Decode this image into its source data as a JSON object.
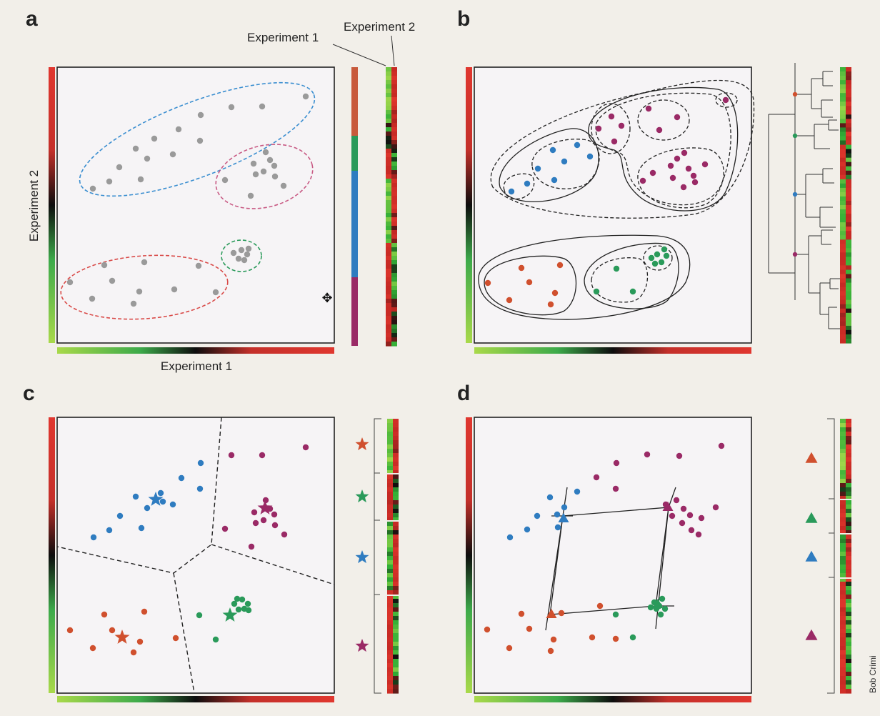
{
  "figure": {
    "panels": [
      "a",
      "b",
      "c",
      "d"
    ],
    "axis_x": "Experiment 1",
    "axis_y": "Experiment 2",
    "heatmap_col_1": "Experiment 1",
    "heatmap_col_2": "Experiment 2",
    "credit": "Bob Crimi",
    "colors": {
      "background": "#f2efe9",
      "plot_bg": "#f6f4f6",
      "blue": "#2f7cc0",
      "magenta": "#9a2a66",
      "green": "#2a9a5a",
      "orange": "#d0502e",
      "gray": "#9a9a9a",
      "heat_red": "#e0372f",
      "heat_green": "#3daa4a",
      "heat_light": "#a9d94a"
    },
    "icons": {
      "centroid_c": "star",
      "centroid_d": "triangle",
      "cursor": "move-cursor-icon"
    }
  }
}
